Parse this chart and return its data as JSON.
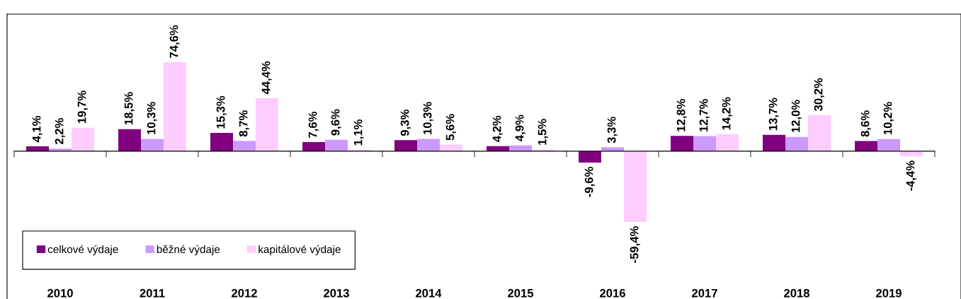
{
  "chart_data": {
    "type": "bar",
    "categories": [
      "2010",
      "2011",
      "2012",
      "2013",
      "2014",
      "2015",
      "2016",
      "2017",
      "2018",
      "2019"
    ],
    "series": [
      {
        "name": "celkové výdaje",
        "color": "#800080",
        "values": [
          4.1,
          18.5,
          15.3,
          7.6,
          9.3,
          4.2,
          -9.6,
          12.8,
          13.7,
          8.6
        ],
        "value_labels": [
          "4,1%",
          "18,5%",
          "15,3%",
          "7,6%",
          "9,3%",
          "4,2%",
          "-9,6%",
          "12,8%",
          "13,7%",
          "8,6%"
        ]
      },
      {
        "name": "běžné výdaje",
        "color": "#cc99ff",
        "values": [
          2.2,
          10.3,
          8.7,
          9.6,
          10.3,
          4.9,
          3.3,
          12.7,
          12.0,
          10.2
        ],
        "value_labels": [
          "2,2%",
          "10,3%",
          "8,7%",
          "9,6%",
          "10,3%",
          "4,9%",
          "3,3%",
          "12,7%",
          "12,0%",
          "10,2%"
        ]
      },
      {
        "name": "kapitálové výdaje",
        "color": "#ffccff",
        "values": [
          19.7,
          74.6,
          44.4,
          1.1,
          5.6,
          1.5,
          -59.4,
          14.2,
          30.2,
          -4.4
        ],
        "value_labels": [
          "19,7%",
          "74,6%",
          "44,4%",
          "1,1%",
          "5,6%",
          "1,5%",
          "-59,4%",
          "14,2%",
          "30,2%",
          "-4,4%"
        ]
      }
    ],
    "ylim": [
      -124,
      115
    ],
    "legend": "bottom left",
    "grid": false
  }
}
